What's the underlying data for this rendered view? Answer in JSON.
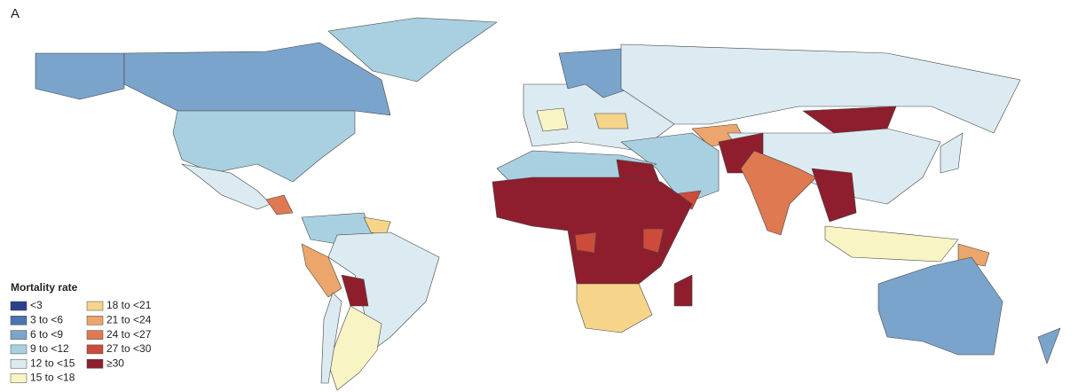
{
  "panel_label": "A",
  "legend": {
    "title": "Mortality rate",
    "items": [
      {
        "label": "<3",
        "color": "#2b3f8c"
      },
      {
        "label": "3 to <6",
        "color": "#4b74b1"
      },
      {
        "label": "6 to <9",
        "color": "#7aa4cc"
      },
      {
        "label": "9 to <12",
        "color": "#a9d0e1"
      },
      {
        "label": "12 to <15",
        "color": "#dcebf2"
      },
      {
        "label": "15 to <18",
        "color": "#f8f4c3"
      },
      {
        "label": "18 to <21",
        "color": "#f6d58b"
      },
      {
        "label": "21 to <24",
        "color": "#eca56a"
      },
      {
        "label": "24 to <27",
        "color": "#df7951"
      },
      {
        "label": "27 to <30",
        "color": "#cd4b3b"
      },
      {
        "label": "≥30",
        "color": "#8e1e2d"
      }
    ]
  }
}
